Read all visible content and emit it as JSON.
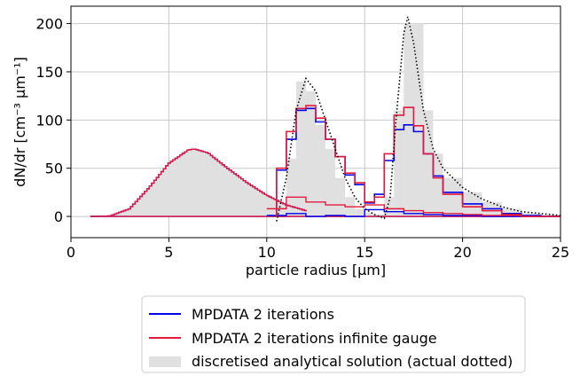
{
  "chart_data": {
    "type": "line",
    "title": "",
    "xlabel": "particle radius [μm]",
    "ylabel": "dN/dr [cm⁻³ μm⁻¹]",
    "xlim": [
      0,
      25
    ],
    "ylim": [
      -22,
      218
    ],
    "xticks": [
      0,
      5,
      10,
      15,
      20,
      25
    ],
    "yticks": [
      0,
      50,
      100,
      150,
      200
    ],
    "grid": true,
    "legend_position": "below plot, centered",
    "colors": {
      "blue": "#0000ee",
      "red": "#e31a3c",
      "gray_fill": "#e0e0e0",
      "grid": "#c8c8c8",
      "dotted": "#000000"
    },
    "legend": [
      {
        "key": "blue",
        "label": "MPDATA 2 iterations"
      },
      {
        "key": "red",
        "label": "MPDATA 2 iterations infinite gauge"
      },
      {
        "key": "gray",
        "label": "discretised analytical solution (actual dotted)"
      }
    ],
    "initial_distribution": {
      "type": "lognormal-like",
      "x_range": [
        1,
        12
      ],
      "mode_x": 6.3,
      "peak_y": 70,
      "note_values": [
        [
          1,
          0
        ],
        [
          2,
          0.5
        ],
        [
          3,
          8
        ],
        [
          4,
          30
        ],
        [
          5,
          55
        ],
        [
          6,
          69
        ],
        [
          6.3,
          70
        ],
        [
          7,
          66
        ],
        [
          8,
          50
        ],
        [
          9,
          35
        ],
        [
          10,
          22
        ],
        [
          11,
          12
        ],
        [
          12,
          6
        ]
      ]
    },
    "analytical_dotted": [
      [
        10.5,
        -5
      ],
      [
        11,
        40
      ],
      [
        11.5,
        110
      ],
      [
        12,
        143
      ],
      [
        12.5,
        130
      ],
      [
        13,
        100
      ],
      [
        13.5,
        70
      ],
      [
        14,
        40
      ],
      [
        14.5,
        20
      ],
      [
        15,
        8
      ],
      [
        15.5,
        2
      ],
      [
        16,
        -2
      ],
      [
        16.3,
        20
      ],
      [
        16.6,
        100
      ],
      [
        17,
        190
      ],
      [
        17.2,
        207
      ],
      [
        17.5,
        180
      ],
      [
        18,
        110
      ],
      [
        18.5,
        70
      ],
      [
        19,
        50
      ],
      [
        20,
        30
      ],
      [
        21,
        18
      ],
      [
        22,
        10
      ],
      [
        23,
        5
      ],
      [
        24,
        3
      ],
      [
        25,
        1
      ]
    ],
    "gray_bars": {
      "edges": [
        10.5,
        11,
        11.5,
        12,
        12.5,
        13,
        13.5,
        14,
        14.5,
        15,
        15.5,
        16,
        16.5,
        17,
        17.5,
        18,
        18.5,
        19,
        20,
        21,
        22,
        23,
        24,
        25
      ],
      "values": [
        5,
        60,
        140,
        130,
        95,
        70,
        40,
        20,
        8,
        4,
        2,
        20,
        110,
        200,
        200,
        110,
        65,
        40,
        25,
        15,
        8,
        4,
        2
      ]
    },
    "series": [
      {
        "name": "MPDATA 2 iterations",
        "edges": [
          10.5,
          11,
          11.5,
          12,
          12.5,
          13,
          13.5,
          14,
          14.5,
          15,
          15.5,
          16,
          16.5,
          17,
          17.5,
          18,
          18.5,
          19,
          20,
          21,
          22,
          23,
          24,
          25
        ],
        "values": [
          48,
          80,
          110,
          112,
          98,
          80,
          62,
          43,
          33,
          14,
          23,
          58,
          90,
          95,
          88,
          65,
          42,
          25,
          13,
          8,
          3,
          1,
          0
        ]
      },
      {
        "name": "MPDATA 2 iterations infinite gauge",
        "edges": [
          10.5,
          11,
          11.5,
          12,
          12.5,
          13,
          13.5,
          14,
          14.5,
          15,
          15.5,
          16,
          16.5,
          17,
          17.5,
          18,
          18.5,
          19,
          20,
          21,
          22,
          23,
          24,
          25
        ],
        "values": [
          50,
          88,
          112,
          115,
          102,
          80,
          62,
          45,
          35,
          15,
          20,
          65,
          105,
          113,
          94,
          65,
          40,
          23,
          10,
          6,
          2,
          0,
          0
        ]
      }
    ],
    "low_tails": {
      "blue": [
        [
          10,
          1
        ],
        [
          11,
          3
        ],
        [
          12,
          0
        ],
        [
          13,
          1
        ],
        [
          14,
          0
        ],
        [
          15,
          7
        ],
        [
          16,
          5
        ],
        [
          17,
          3
        ],
        [
          18,
          2
        ],
        [
          19,
          1
        ],
        [
          20,
          1
        ],
        [
          21,
          0
        ],
        [
          22,
          0
        ],
        [
          23,
          0
        ],
        [
          24,
          0
        ],
        [
          25,
          0
        ]
      ],
      "red": [
        [
          10,
          8
        ],
        [
          11,
          20
        ],
        [
          12,
          15
        ],
        [
          13,
          12
        ],
        [
          14,
          10
        ],
        [
          15,
          12
        ],
        [
          16,
          8
        ],
        [
          17,
          6
        ],
        [
          18,
          4
        ],
        [
          19,
          3
        ],
        [
          20,
          2
        ],
        [
          21,
          1
        ],
        [
          22,
          1
        ],
        [
          23,
          0
        ],
        [
          24,
          0
        ],
        [
          25,
          0
        ]
      ]
    }
  }
}
